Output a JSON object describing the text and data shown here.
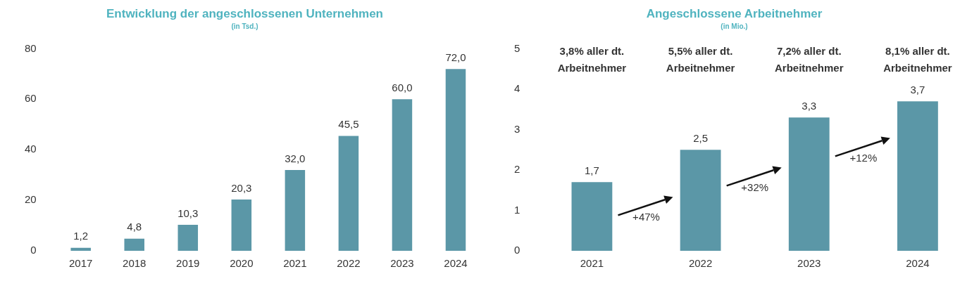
{
  "chart_data": [
    {
      "type": "bar",
      "title": "Entwicklung der angeschlossenen Unternehmen",
      "subtitle": "(in Tsd.)",
      "categories": [
        "2017",
        "2018",
        "2019",
        "2020",
        "2021",
        "2022",
        "2023",
        "2024"
      ],
      "values": [
        1.2,
        4.8,
        10.3,
        20.3,
        32.0,
        45.5,
        60.0,
        72.0
      ],
      "value_labels": [
        "1,2",
        "4,8",
        "10,3",
        "20,3",
        "32,0",
        "45,5",
        "60,0",
        "72,0"
      ],
      "color": "#5b97a7",
      "ylim": [
        0,
        80
      ],
      "yticks": [
        0,
        20,
        40,
        60,
        80
      ],
      "grid": false,
      "legend": false
    },
    {
      "type": "bar",
      "title": "Angeschlossene Arbeitnehmer",
      "subtitle": "(in Mio.)",
      "categories": [
        "2021",
        "2022",
        "2023",
        "2024"
      ],
      "values": [
        1.7,
        2.5,
        3.3,
        3.7
      ],
      "value_labels": [
        "1,7",
        "2,5",
        "3,3",
        "3,7"
      ],
      "color": "#5b97a7",
      "ylim": [
        0,
        5
      ],
      "yticks": [
        0,
        1,
        2,
        3,
        4,
        5
      ],
      "grid": false,
      "legend": false,
      "annotations": [
        "3,8% aller dt. Arbeitnehmer",
        "5,5% aller dt. Arbeitnehmer",
        "7,2% aller dt. Arbeitnehmer",
        "8,1% aller dt. Arbeitnehmer",
        "+47%",
        "+32%",
        "+12%"
      ]
    }
  ]
}
